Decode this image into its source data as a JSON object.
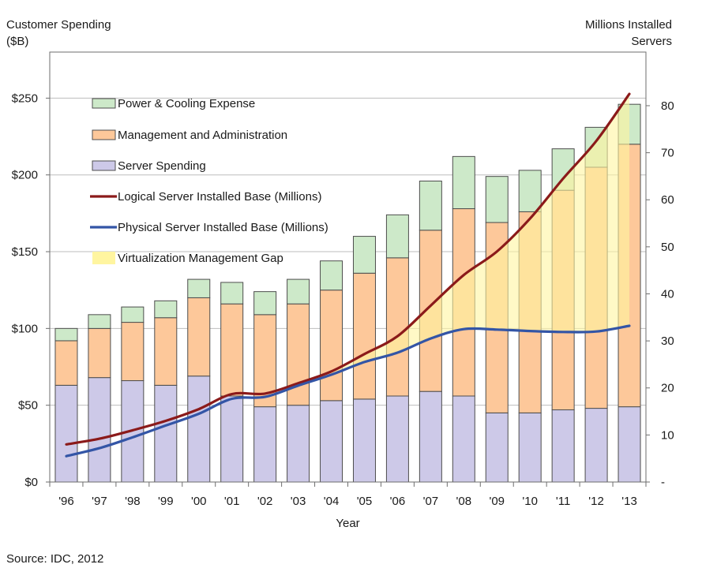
{
  "chart_data": {
    "type": "bar",
    "stacked": true,
    "title": "",
    "left_axis_title": [
      "Customer Spending",
      "($B)"
    ],
    "right_axis_title": [
      "Millions Installed",
      "Servers"
    ],
    "xlabel": "Year",
    "categories": [
      "'96",
      "'97",
      "'98",
      "'99",
      "'00",
      "'01",
      "'02",
      "'03",
      "'04",
      "'05",
      "'06",
      "'07",
      "'08",
      "'09",
      "'10",
      "'11",
      "'12",
      "'13"
    ],
    "ylim_left": [
      0,
      280
    ],
    "left_ticks": [
      {
        "value": 0,
        "label": "$0"
      },
      {
        "value": 50,
        "label": "$50"
      },
      {
        "value": 100,
        "label": "$100"
      },
      {
        "value": 150,
        "label": "$150"
      },
      {
        "value": 200,
        "label": "$200"
      },
      {
        "value": 250,
        "label": "$250"
      }
    ],
    "ylim_right": [
      0,
      91.4
    ],
    "right_ticks": [
      {
        "value": 0,
        "label": "-"
      },
      {
        "value": 10,
        "label": "10"
      },
      {
        "value": 20,
        "label": "20"
      },
      {
        "value": 30,
        "label": "30"
      },
      {
        "value": 40,
        "label": "40"
      },
      {
        "value": 50,
        "label": "50"
      },
      {
        "value": 60,
        "label": "60"
      },
      {
        "value": 70,
        "label": "70"
      },
      {
        "value": 80,
        "label": "80"
      }
    ],
    "bar_series": [
      {
        "name": "Server Spending",
        "color": "#cdc9e8",
        "values": [
          63,
          68,
          66,
          63,
          69,
          56,
          49,
          50,
          53,
          54,
          56,
          59,
          56,
          45,
          45,
          47,
          48,
          49
        ]
      },
      {
        "name": "Management and Administration",
        "color": "#fdc89a",
        "values": [
          29,
          32,
          38,
          44,
          51,
          60,
          60,
          66,
          72,
          82,
          90,
          105,
          122,
          124,
          131,
          143,
          157,
          171
        ]
      },
      {
        "name": "Power & Cooling Expense",
        "color": "#cde9c9",
        "values": [
          8,
          9,
          10,
          11,
          12,
          14,
          15,
          16,
          19,
          24,
          28,
          32,
          34,
          30,
          27,
          27,
          26,
          26
        ]
      }
    ],
    "line_series": [
      {
        "name": "Logical Server Installed Base (Millions)",
        "color": "#8b1a1a",
        "axis": "right",
        "values": [
          8.0,
          9.2,
          11.0,
          13.0,
          15.5,
          18.7,
          18.8,
          21.0,
          23.5,
          27.2,
          31.0,
          37.5,
          44.0,
          49.0,
          56.0,
          64.5,
          72.5,
          82.5
        ]
      },
      {
        "name": "Physical Server Installed Base (Millions)",
        "color": "#3355a6",
        "axis": "right",
        "values": [
          5.5,
          7.2,
          9.5,
          12.0,
          14.5,
          17.7,
          18.1,
          20.5,
          22.8,
          25.5,
          27.5,
          30.5,
          32.5,
          32.4,
          32.1,
          31.9,
          32.0,
          33.2
        ]
      }
    ],
    "gap_area": {
      "name": "Virtualization Management Gap",
      "color": "#fff5a0",
      "between": [
        "Logical Server Installed Base (Millions)",
        "Physical Server Installed Base (Millions)"
      ]
    },
    "legend": [
      {
        "label": "Power & Cooling Expense",
        "kind": "box",
        "color": "#cde9c9"
      },
      {
        "label": "Management and Administration",
        "kind": "box",
        "color": "#fdc89a"
      },
      {
        "label": "Server Spending",
        "kind": "box",
        "color": "#cdc9e8"
      },
      {
        "label": "Logical Server Installed Base (Millions)",
        "kind": "line",
        "color": "#8b1a1a"
      },
      {
        "label": "Physical Server Installed Base (Millions)",
        "kind": "line",
        "color": "#3355a6"
      },
      {
        "label": "Virtualization Management Gap",
        "kind": "area",
        "color": "#fff5a0"
      }
    ],
    "legend_position": "top-left",
    "grid": true
  },
  "source": "Source: IDC, 2012"
}
